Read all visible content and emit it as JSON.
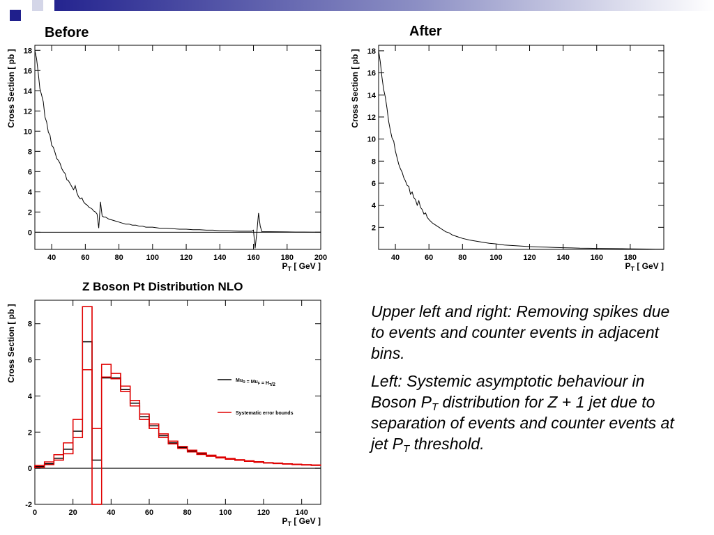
{
  "slide": {
    "caption_1": "Upper left and right: Removing spikes due to events and counter events in adjacent bins.",
    "caption_2_parts": [
      "Left: Systemic asymptotic behaviour in Boson P",
      "T",
      " distribution for Z + 1 jet due to separation of events and counter events at jet P",
      "T",
      " threshold."
    ],
    "colors": {
      "bar_dark": "#1f1f8c",
      "bar_light": "#d4d6e8",
      "series_black": "#000000",
      "series_red": "#e00000"
    }
  },
  "chart_data": [
    {
      "type": "line",
      "title": "Before",
      "xlabel": "P_T [ GeV ]",
      "ylabel": "Cross Section [ pb ]",
      "xlim": [
        30,
        200
      ],
      "ylim": [
        -1.7,
        18.5
      ],
      "xticks": [
        40,
        60,
        80,
        100,
        120,
        140,
        160,
        180,
        200
      ],
      "yticks": [
        0,
        2,
        4,
        6,
        8,
        10,
        12,
        14,
        16,
        18
      ],
      "zero_line": true,
      "series": [
        {
          "values": [
            [
              30,
              18
            ],
            [
              31,
              17.2
            ],
            [
              32,
              15.8
            ],
            [
              33,
              14.2
            ],
            [
              34,
              13.6
            ],
            [
              35,
              12.9
            ],
            [
              36,
              11.4
            ],
            [
              37,
              10.9
            ],
            [
              38,
              9.9
            ],
            [
              39,
              9.6
            ],
            [
              40,
              8.6
            ],
            [
              41,
              8.4
            ],
            [
              42,
              7.9
            ],
            [
              43,
              7.3
            ],
            [
              44,
              7.1
            ],
            [
              45,
              6.8
            ],
            [
              46,
              6.3
            ],
            [
              47,
              6.0
            ],
            [
              48,
              5.8
            ],
            [
              49,
              5.2
            ],
            [
              50,
              5.1
            ],
            [
              51,
              4.8
            ],
            [
              52,
              4.5
            ],
            [
              53,
              4.2
            ],
            [
              54,
              4.6
            ],
            [
              55,
              3.9
            ],
            [
              56,
              3.5
            ],
            [
              57,
              3.3
            ],
            [
              58,
              3.4
            ],
            [
              59,
              3.0
            ],
            [
              60,
              2.8
            ],
            [
              61,
              2.7
            ],
            [
              62,
              2.5
            ],
            [
              63,
              2.4
            ],
            [
              64,
              2.3
            ],
            [
              65,
              2.1
            ],
            [
              66,
              2.0
            ],
            [
              67,
              1.8
            ],
            [
              68,
              0.4
            ],
            [
              69,
              3.0
            ],
            [
              70,
              1.6
            ],
            [
              71,
              1.5
            ],
            [
              72,
              1.5
            ],
            [
              74,
              1.3
            ],
            [
              76,
              1.2
            ],
            [
              78,
              1.1
            ],
            [
              80,
              1.0
            ],
            [
              82,
              0.9
            ],
            [
              84,
              0.8
            ],
            [
              86,
              0.8
            ],
            [
              88,
              0.7
            ],
            [
              90,
              0.7
            ],
            [
              92,
              0.6
            ],
            [
              94,
              0.6
            ],
            [
              96,
              0.5
            ],
            [
              98,
              0.5
            ],
            [
              100,
              0.5
            ],
            [
              104,
              0.4
            ],
            [
              108,
              0.4
            ],
            [
              112,
              0.35
            ],
            [
              116,
              0.3
            ],
            [
              120,
              0.3
            ],
            [
              124,
              0.25
            ],
            [
              128,
              0.25
            ],
            [
              132,
              0.2
            ],
            [
              136,
              0.2
            ],
            [
              140,
              0.15
            ],
            [
              144,
              0.15
            ],
            [
              148,
              0.12
            ],
            [
              152,
              0.1
            ],
            [
              156,
              0.1
            ],
            [
              159,
              0.1
            ],
            [
              160,
              0.2
            ],
            [
              161,
              -1.6
            ],
            [
              162,
              0.0
            ],
            [
              163,
              1.9
            ],
            [
              164,
              0.6
            ],
            [
              165,
              0.05
            ],
            [
              170,
              0.05
            ],
            [
              175,
              0.04
            ],
            [
              180,
              0.03
            ],
            [
              185,
              0.02
            ],
            [
              190,
              0.02
            ],
            [
              195,
              0.01
            ],
            [
              200,
              0.01
            ]
          ]
        }
      ]
    },
    {
      "type": "line",
      "title": "After",
      "xlabel": "P_T [ GeV ]",
      "ylabel": "Cross Section [ pb ]",
      "xlim": [
        30,
        200
      ],
      "ylim": [
        0,
        18.5
      ],
      "xticks": [
        40,
        60,
        80,
        100,
        120,
        140,
        160,
        180
      ],
      "yticks": [
        2,
        4,
        6,
        8,
        10,
        12,
        14,
        16,
        18
      ],
      "zero_line": false,
      "series": [
        {
          "values": [
            [
              30,
              18
            ],
            [
              31,
              17.0
            ],
            [
              32,
              15.6
            ],
            [
              33,
              14.5
            ],
            [
              34,
              13.8
            ],
            [
              35,
              12.8
            ],
            [
              36,
              11.6
            ],
            [
              37,
              10.8
            ],
            [
              38,
              10.1
            ],
            [
              39,
              9.8
            ],
            [
              40,
              8.9
            ],
            [
              41,
              8.3
            ],
            [
              42,
              7.7
            ],
            [
              43,
              7.3
            ],
            [
              44,
              7.0
            ],
            [
              45,
              6.5
            ],
            [
              46,
              6.2
            ],
            [
              47,
              5.8
            ],
            [
              48,
              5.7
            ],
            [
              49,
              5.0
            ],
            [
              50,
              5.2
            ],
            [
              51,
              4.7
            ],
            [
              52,
              4.5
            ],
            [
              53,
              4.0
            ],
            [
              54,
              4.4
            ],
            [
              55,
              3.8
            ],
            [
              56,
              3.6
            ],
            [
              57,
              3.2
            ],
            [
              58,
              3.3
            ],
            [
              59,
              2.9
            ],
            [
              60,
              2.7
            ],
            [
              62,
              2.4
            ],
            [
              64,
              2.2
            ],
            [
              66,
              2.0
            ],
            [
              68,
              1.8
            ],
            [
              70,
              1.6
            ],
            [
              72,
              1.5
            ],
            [
              74,
              1.3
            ],
            [
              76,
              1.2
            ],
            [
              78,
              1.1
            ],
            [
              80,
              1.0
            ],
            [
              84,
              0.85
            ],
            [
              88,
              0.75
            ],
            [
              92,
              0.65
            ],
            [
              96,
              0.55
            ],
            [
              100,
              0.5
            ],
            [
              105,
              0.4
            ],
            [
              110,
              0.35
            ],
            [
              115,
              0.3
            ],
            [
              120,
              0.25
            ],
            [
              125,
              0.22
            ],
            [
              130,
              0.2
            ],
            [
              135,
              0.17
            ],
            [
              140,
              0.15
            ],
            [
              145,
              0.13
            ],
            [
              150,
              0.11
            ],
            [
              155,
              0.1
            ],
            [
              160,
              0.09
            ],
            [
              165,
              0.08
            ],
            [
              170,
              0.07
            ],
            [
              175,
              0.06
            ],
            [
              180,
              0.05
            ],
            [
              185,
              0.04
            ],
            [
              190,
              0.03
            ],
            [
              195,
              0.02
            ],
            [
              200,
              0.02
            ]
          ]
        }
      ]
    },
    {
      "type": "step",
      "title": "Z Boson Pt Distribution NLO",
      "xlabel": "P_T [ GeV ]",
      "ylabel": "Cross Section [ pb ]",
      "xlim": [
        0,
        150
      ],
      "ylim": [
        -2,
        9.3
      ],
      "xticks": [
        0,
        20,
        40,
        60,
        80,
        100,
        120,
        140
      ],
      "yticks": [
        -2,
        0,
        2,
        4,
        6,
        8
      ],
      "zero_line": true,
      "bin_width": 5,
      "legend_position": "right",
      "series": [
        {
          "name": "Mu_R = Mu_F = H_T/2",
          "color": "#000000",
          "values": [
            0.1,
            0.25,
            0.55,
            1.05,
            2.05,
            7.0,
            0.45,
            5.0,
            5.0,
            4.35,
            3.6,
            2.85,
            2.35,
            1.8,
            1.4,
            1.15,
            0.95,
            0.8,
            0.7,
            0.6,
            0.52,
            0.45,
            0.4,
            0.35,
            0.3,
            0.27,
            0.24,
            0.21,
            0.19,
            0.17
          ]
        },
        {
          "name": "Systematic error bounds",
          "color": "#e00000",
          "values": [
            0.15,
            0.35,
            0.75,
            1.4,
            2.7,
            8.95,
            2.2,
            5.75,
            5.25,
            4.55,
            3.75,
            3.0,
            2.45,
            1.9,
            1.5,
            1.2,
            1.0,
            0.85,
            0.72,
            0.62,
            0.54,
            0.47,
            0.41,
            0.36,
            0.31,
            0.28,
            0.25,
            0.22,
            0.2,
            0.18
          ],
          "values_low": [
            0.05,
            0.2,
            0.45,
            0.8,
            1.7,
            5.45,
            -2.0,
            5.05,
            4.95,
            4.25,
            3.45,
            2.7,
            2.2,
            1.7,
            1.35,
            1.1,
            0.9,
            0.76,
            0.66,
            0.57,
            0.5,
            0.44,
            0.38,
            0.33,
            0.29,
            0.26,
            0.23,
            0.2,
            0.18,
            0.16
          ]
        }
      ]
    }
  ]
}
